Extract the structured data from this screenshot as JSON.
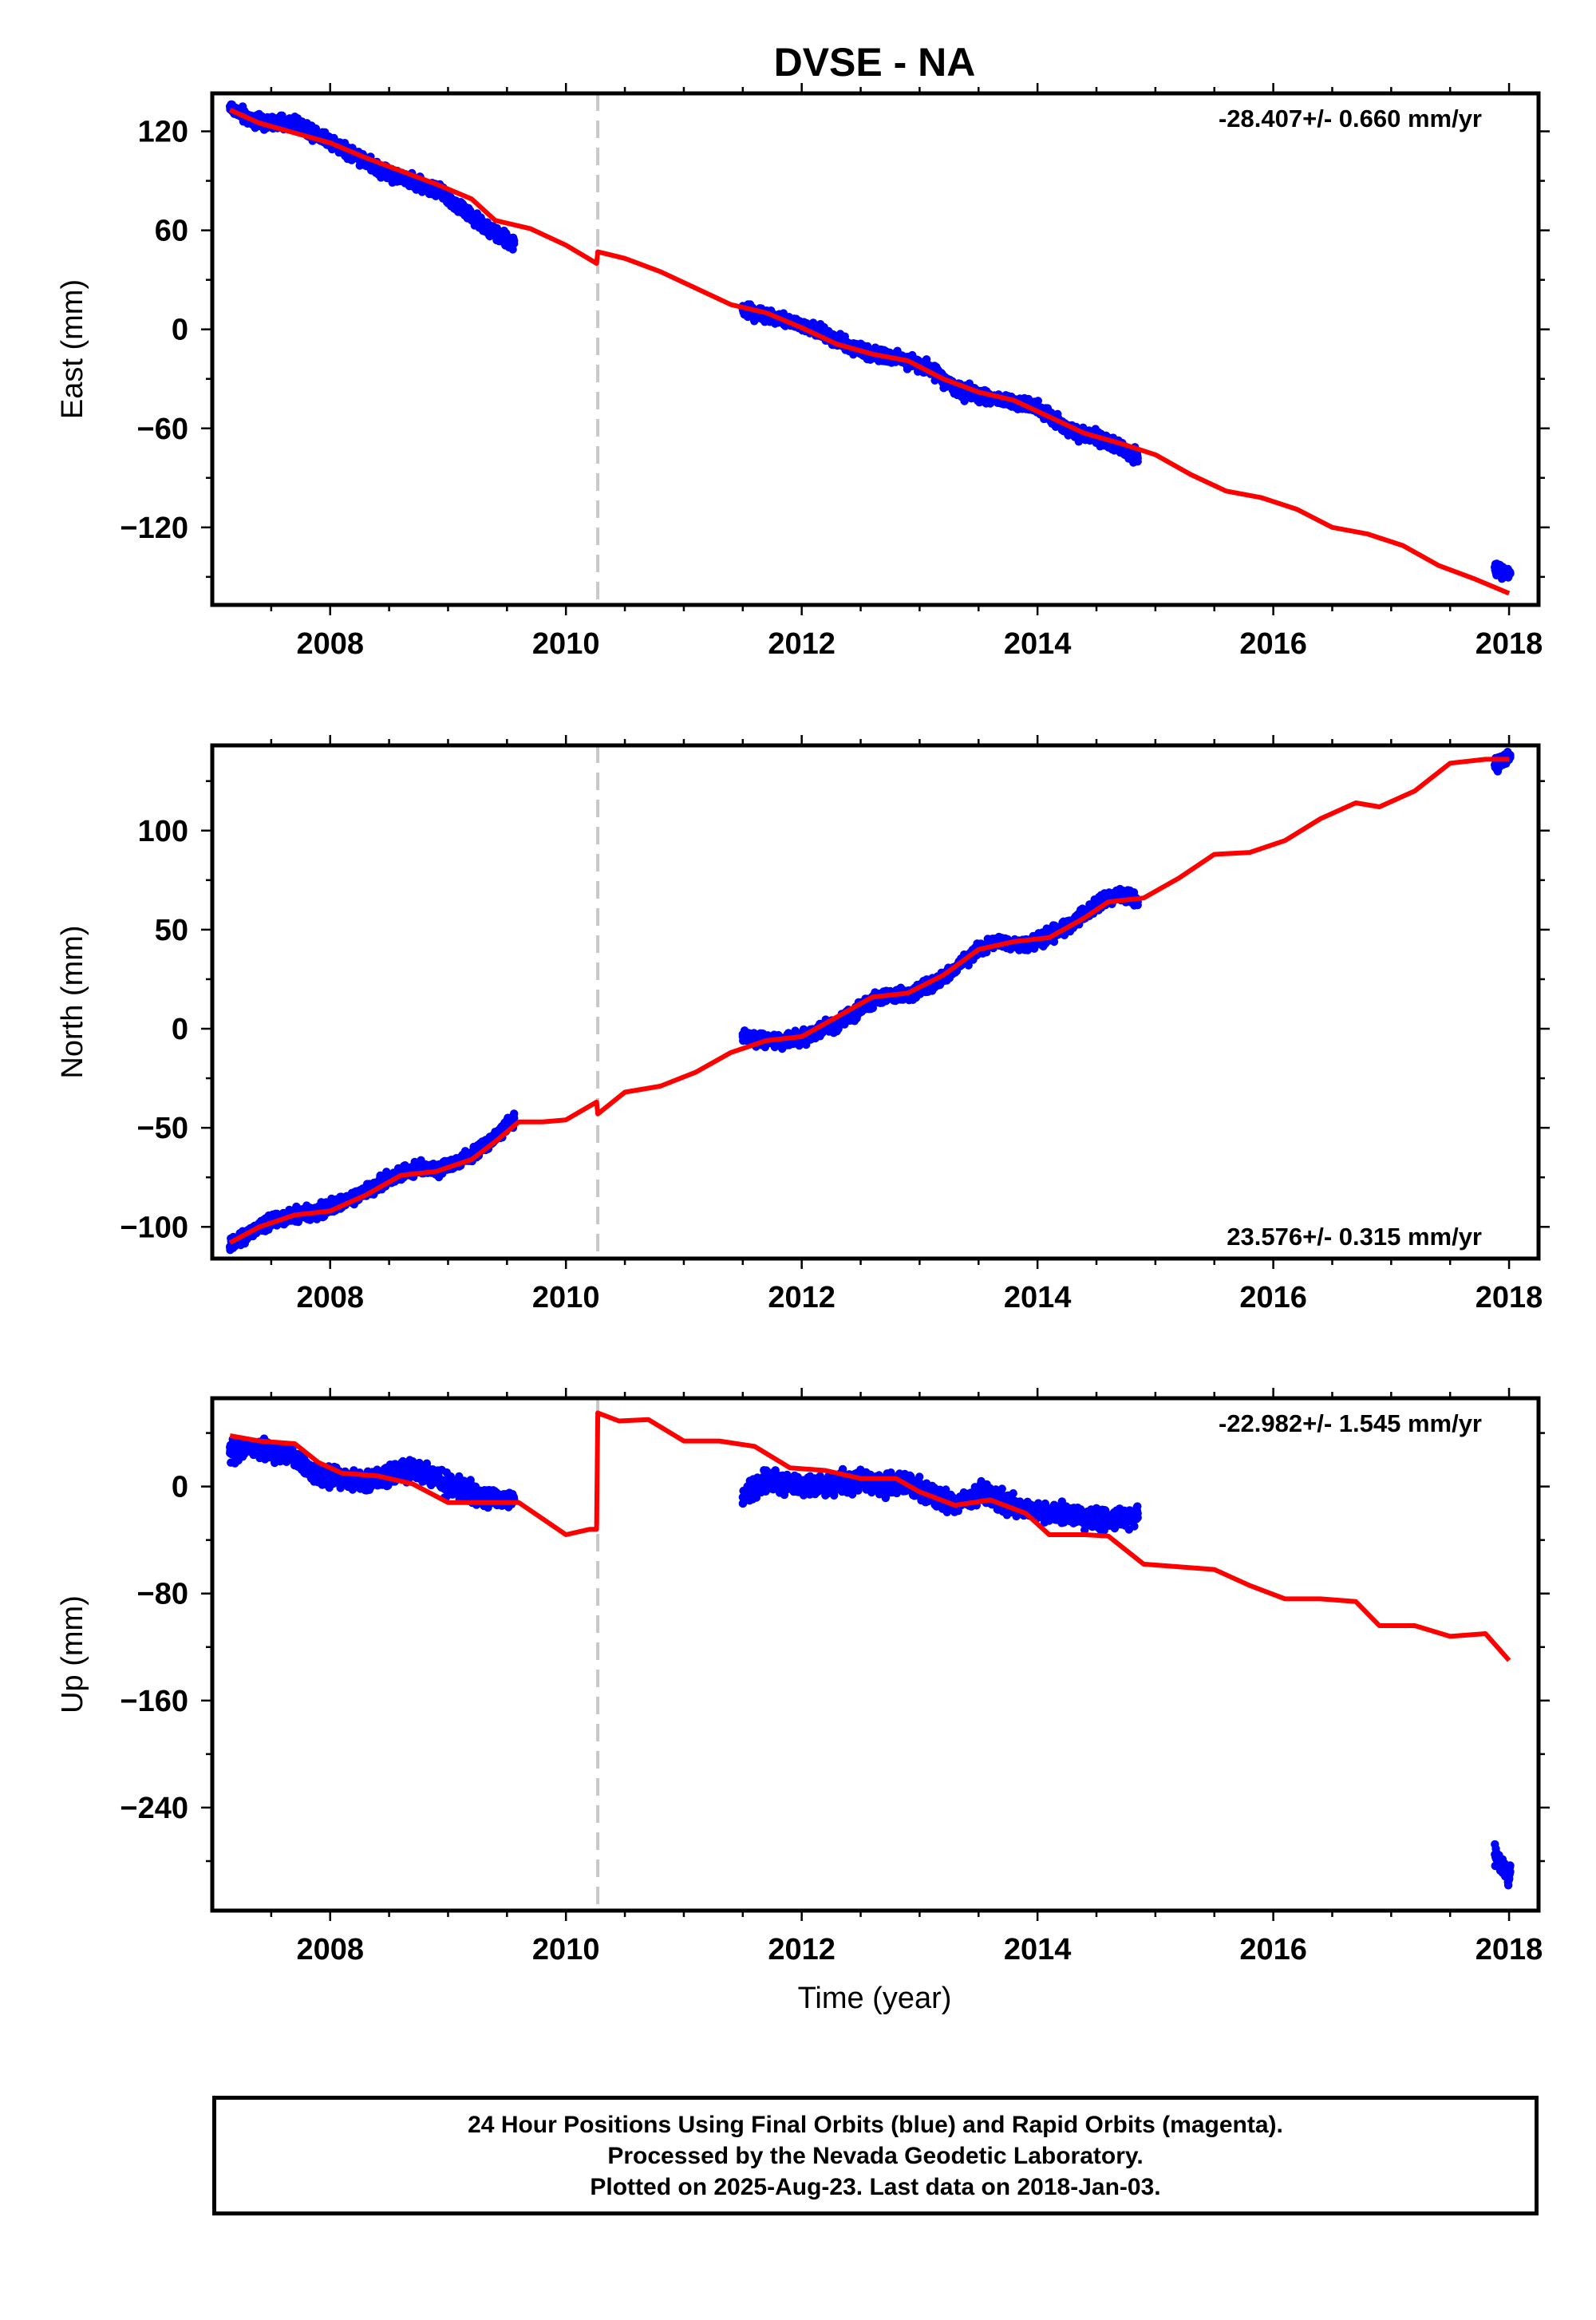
{
  "title": "DVSE - NA",
  "colors": {
    "model_line": "#ff0000",
    "data_points": "#0000ff",
    "event_line": "#c8c8c8",
    "axes": "#000000"
  },
  "x_axis": {
    "label": "Time (year)",
    "range": [
      2007.0,
      2018.25
    ],
    "tick_labels": [
      "2008",
      "2010",
      "2012",
      "2014",
      "2016",
      "2018"
    ],
    "equipment_change_epoch": 2010.27
  },
  "footer": {
    "line1": "24 Hour Positions Using Final Orbits (blue) and Rapid Orbits (magenta).",
    "line2": "Processed by the Nevada Geodetic Laboratory.",
    "line3": "Plotted on 2025-Aug-23. Last data on 2018-Jan-03."
  },
  "chart_data": [
    {
      "type": "scatter",
      "component": "east",
      "ylabel": "East (mm)",
      "ylim": [
        -167,
        143
      ],
      "y_tick_labels": [
        "120",
        "60",
        "0",
        "-60",
        "-120"
      ],
      "y_ticks": [
        120,
        60,
        0,
        -60,
        -120
      ],
      "velocity_label": "-28.407+/- 0.660 mm/yr",
      "velocity_label_position": "top-right",
      "data_segments": [
        {
          "x": [
            2007.15,
            2007.3,
            2007.5,
            2007.7,
            2007.9,
            2008.1,
            2008.3,
            2008.5,
            2008.7,
            2008.9,
            2009.1,
            2009.3,
            2009.56
          ],
          "y": [
            135,
            128,
            125,
            125,
            118,
            110,
            102,
            94,
            90,
            84,
            74,
            62,
            52
          ]
        },
        {
          "x": [
            2011.5,
            2011.7,
            2011.9,
            2012.1,
            2012.3,
            2012.5,
            2012.7,
            2012.9,
            2013.1,
            2013.3,
            2013.5,
            2013.7,
            2013.9,
            2014.1,
            2014.3,
            2014.5,
            2014.7,
            2014.85
          ],
          "y": [
            12,
            8,
            5,
            0,
            -6,
            -13,
            -16,
            -19,
            -24,
            -36,
            -40,
            -43,
            -45,
            -52,
            -62,
            -66,
            -72,
            -78
          ]
        },
        {
          "x": [
            2017.88,
            2017.93,
            2017.98,
            2018.01
          ],
          "y": [
            -144,
            -146,
            -149,
            -148
          ]
        }
      ],
      "model_line": {
        "x": [
          2007.15,
          2007.4,
          2007.7,
          2008.0,
          2008.3,
          2008.6,
          2008.9,
          2009.2,
          2009.4,
          2009.7,
          2010.0,
          2010.26,
          2010.27,
          2010.5,
          2010.8,
          2011.1,
          2011.4,
          2011.7,
          2012.0,
          2012.3,
          2012.6,
          2012.9,
          2013.2,
          2013.5,
          2013.8,
          2014.1,
          2014.4,
          2014.7,
          2015.0,
          2015.3,
          2015.6,
          2015.9,
          2016.2,
          2016.5,
          2016.8,
          2017.1,
          2017.4,
          2017.7,
          2018.0
        ],
        "y": [
          133,
          125,
          119,
          113,
          104,
          96,
          88,
          79,
          66,
          61,
          51,
          40,
          47,
          43,
          35,
          25,
          15,
          10,
          1,
          -9,
          -15,
          -19,
          -30,
          -38,
          -43,
          -53,
          -63,
          -69,
          -76,
          -88,
          -98,
          -102,
          -109,
          -120,
          -124,
          -131,
          -143,
          -151,
          -160
        ]
      }
    },
    {
      "type": "scatter",
      "component": "north",
      "ylabel": "North (mm)",
      "ylim": [
        -116,
        143
      ],
      "y_tick_labels": [
        "100",
        "50",
        "0",
        "-50",
        "-100"
      ],
      "y_ticks": [
        100,
        50,
        0,
        -50,
        -100
      ],
      "velocity_label": "23.576+/- 0.315 mm/yr",
      "velocity_label_position": "bottom-right",
      "data_segments": [
        {
          "x": [
            2007.15,
            2007.3,
            2007.5,
            2007.7,
            2007.9,
            2008.1,
            2008.3,
            2008.5,
            2008.7,
            2008.9,
            2009.1,
            2009.3,
            2009.56
          ],
          "y": [
            -110,
            -104,
            -97,
            -94,
            -93,
            -87,
            -82,
            -76,
            -70,
            -71,
            -66,
            -60,
            -45
          ]
        },
        {
          "x": [
            2011.5,
            2011.7,
            2011.9,
            2012.1,
            2012.3,
            2012.5,
            2012.7,
            2012.9,
            2013.1,
            2013.3,
            2013.5,
            2013.7,
            2013.9,
            2014.1,
            2014.3,
            2014.5,
            2014.7,
            2014.85
          ],
          "y": [
            -4,
            -6,
            -6,
            -2,
            2,
            10,
            17,
            17,
            22,
            30,
            40,
            44,
            42,
            47,
            53,
            63,
            68,
            64
          ]
        },
        {
          "x": [
            2017.88,
            2017.93,
            2017.98,
            2018.01
          ],
          "y": [
            133,
            135,
            137,
            137
          ]
        }
      ],
      "model_line": {
        "x": [
          2007.15,
          2007.4,
          2007.7,
          2008.0,
          2008.3,
          2008.6,
          2008.9,
          2009.2,
          2009.4,
          2009.6,
          2009.8,
          2010.0,
          2010.26,
          2010.27,
          2010.5,
          2010.8,
          2011.1,
          2011.4,
          2011.7,
          2012.0,
          2012.3,
          2012.6,
          2012.9,
          2013.2,
          2013.5,
          2013.8,
          2014.1,
          2014.4,
          2014.6,
          2014.9,
          2015.2,
          2015.5,
          2015.8,
          2016.1,
          2016.4,
          2016.7,
          2016.9,
          2017.2,
          2017.5,
          2017.8,
          2018.0
        ],
        "y": [
          -108,
          -100,
          -94,
          -92,
          -84,
          -74,
          -72,
          -66,
          -57,
          -47,
          -47,
          -46,
          -37,
          -43,
          -32,
          -29,
          -22,
          -12,
          -6,
          -4,
          6,
          16,
          18,
          27,
          40,
          44,
          46,
          56,
          64,
          66,
          76,
          88,
          89,
          95,
          106,
          114,
          112,
          120,
          134,
          136,
          136
        ]
      }
    },
    {
      "type": "scatter",
      "component": "up",
      "ylabel": "Up (mm)",
      "ylim": [
        -317,
        66
      ],
      "y_tick_labels": [
        "0",
        "-80",
        "-160",
        "-240"
      ],
      "y_ticks": [
        0,
        -80,
        -160,
        -240
      ],
      "velocity_label": "-22.982+/- 1.545 mm/yr",
      "velocity_label_position": "top-right",
      "data_segments": [
        {
          "x": [
            2007.15,
            2007.3,
            2007.5,
            2007.7,
            2007.9,
            2008.1,
            2008.3,
            2008.5,
            2008.7,
            2008.9,
            2009.1,
            2009.3,
            2009.56
          ],
          "y": [
            25,
            30,
            26,
            21,
            8,
            7,
            3,
            10,
            12,
            6,
            -2,
            -8,
            -10
          ]
        },
        {
          "x": [
            2011.5,
            2011.7,
            2011.9,
            2012.1,
            2012.3,
            2012.5,
            2012.7,
            2012.9,
            2013.1,
            2013.3,
            2013.5,
            2013.7,
            2013.9,
            2014.1,
            2014.3,
            2014.5,
            2014.7,
            2014.85
          ],
          "y": [
            -8,
            5,
            3,
            0,
            2,
            6,
            0,
            2,
            -8,
            -14,
            -5,
            -10,
            -18,
            -20,
            -22,
            -25,
            -25,
            -20
          ]
        },
        {
          "x": [
            2017.88,
            2017.93,
            2017.98,
            2018.01
          ],
          "y": [
            -275,
            -282,
            -290,
            -288
          ]
        }
      ],
      "model_line": {
        "x": [
          2007.15,
          2007.4,
          2007.7,
          2007.9,
          2008.1,
          2008.4,
          2008.7,
          2009.0,
          2009.3,
          2009.6,
          2009.8,
          2010.0,
          2010.2,
          2010.26,
          2010.27,
          2010.45,
          2010.7,
          2011.0,
          2011.3,
          2011.6,
          2011.9,
          2012.2,
          2012.5,
          2012.8,
          2013.0,
          2013.3,
          2013.6,
          2013.9,
          2014.1,
          2014.4,
          2014.6,
          2014.9,
          2015.2,
          2015.5,
          2015.8,
          2016.1,
          2016.4,
          2016.7,
          2016.9,
          2017.2,
          2017.5,
          2017.8,
          2018.0
        ],
        "y": [
          38,
          34,
          32,
          18,
          10,
          8,
          2,
          -12,
          -12,
          -12,
          -24,
          -36,
          -32,
          -32,
          55,
          49,
          50,
          34,
          34,
          30,
          14,
          12,
          6,
          6,
          -4,
          -14,
          -10,
          -20,
          -36,
          -36,
          -37,
          -58,
          -60,
          -62,
          -74,
          -84,
          -84,
          -86,
          -104,
          -104,
          -112,
          -110,
          -130
        ]
      }
    }
  ]
}
